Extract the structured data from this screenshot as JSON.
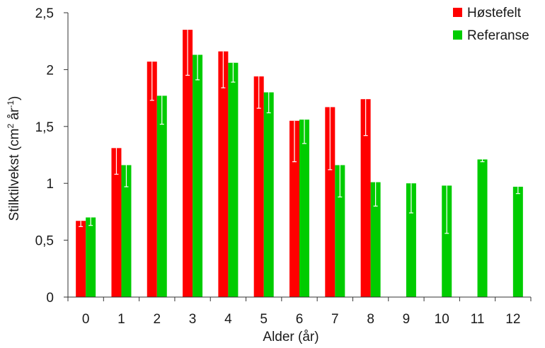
{
  "chart_data": {
    "type": "bar",
    "title": "",
    "xlabel": "Alder (år)",
    "ylabel_parts": {
      "main": "Stilktilvekst (cm",
      "sup1": "2",
      "mid": " år",
      "sup2": "-1",
      "end": ")"
    },
    "categories": [
      "0",
      "1",
      "2",
      "3",
      "4",
      "5",
      "6",
      "7",
      "8",
      "9",
      "10",
      "11",
      "12"
    ],
    "ylim": [
      0,
      2.5
    ],
    "yticks": [
      {
        "value": 0,
        "label": "0"
      },
      {
        "value": 0.5,
        "label": "0,5"
      },
      {
        "value": 1,
        "label": "1"
      },
      {
        "value": 1.5,
        "label": "1,5"
      },
      {
        "value": 2,
        "label": "2"
      },
      {
        "value": 2.5,
        "label": "2,5"
      }
    ],
    "grid": false,
    "legend_position": "top-right",
    "series": [
      {
        "name": "Høstefelt",
        "color": "#ff0000",
        "values": [
          0.67,
          1.31,
          2.07,
          2.35,
          2.16,
          1.94,
          1.55,
          1.67,
          1.74,
          null,
          null,
          null,
          null
        ],
        "err_low": [
          0.62,
          1.08,
          1.73,
          1.95,
          1.84,
          1.66,
          1.19,
          1.12,
          1.42,
          null,
          null,
          null,
          null
        ]
      },
      {
        "name": "Referanse",
        "color": "#00cc00",
        "values": [
          0.7,
          1.16,
          1.77,
          2.13,
          2.06,
          1.8,
          1.56,
          1.16,
          1.01,
          1.0,
          0.98,
          1.21,
          0.97
        ],
        "err_low": [
          0.63,
          0.97,
          1.52,
          1.91,
          1.89,
          1.62,
          1.35,
          0.88,
          0.8,
          0.74,
          0.56,
          1.19,
          0.91
        ]
      }
    ]
  }
}
